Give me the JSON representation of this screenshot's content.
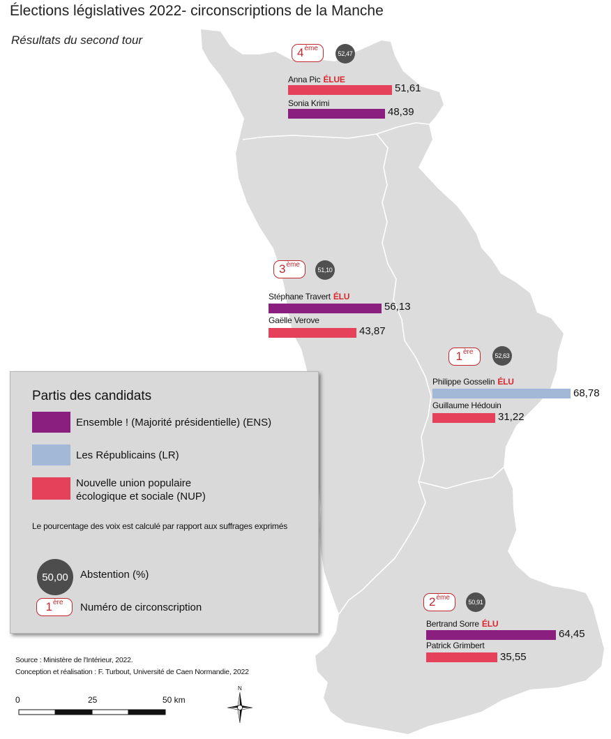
{
  "title": "Élections législatives 2022- circonscriptions de la Manche",
  "subtitle": "Résultats du second tour",
  "colors": {
    "ENS": "#8b1f7f",
    "LR": "#a3b8d6",
    "NUP": "#e6415a",
    "map_fill": "#dcdcdc",
    "map_border": "#ffffff",
    "circ_accent": "#c0272d",
    "abstention": "#505050"
  },
  "constituencies": [
    {
      "number": "4",
      "suffix": "ème",
      "abstention": "52,47",
      "candidates": [
        {
          "name": "Anna Pic",
          "elected_label": "ÉLUE",
          "party": "NUP",
          "pct": 51.61,
          "pct_label": "51,61"
        },
        {
          "name": "Sonia Krimi",
          "elected_label": "",
          "party": "ENS",
          "pct": 48.39,
          "pct_label": "48,39"
        }
      ]
    },
    {
      "number": "3",
      "suffix": "ème",
      "abstention": "51,10",
      "candidates": [
        {
          "name": "Stéphane Travert",
          "elected_label": "ÉLU",
          "party": "ENS",
          "pct": 56.13,
          "pct_label": "56,13"
        },
        {
          "name": "Gaëlle Verove",
          "elected_label": "",
          "party": "NUP",
          "pct": 43.87,
          "pct_label": "43,87"
        }
      ]
    },
    {
      "number": "1",
      "suffix": "ère",
      "abstention": "52,63",
      "candidates": [
        {
          "name": "Philippe Gosselin",
          "elected_label": "ÉLU",
          "party": "LR",
          "pct": 68.78,
          "pct_label": "68,78"
        },
        {
          "name": "Guillaume Hédouin",
          "elected_label": "",
          "party": "NUP",
          "pct": 31.22,
          "pct_label": "31,22"
        }
      ]
    },
    {
      "number": "2",
      "suffix": "ème",
      "abstention": "50,91",
      "candidates": [
        {
          "name": "Bertrand Sorre",
          "elected_label": "ÉLU",
          "party": "ENS",
          "pct": 64.45,
          "pct_label": "64,45"
        },
        {
          "name": "Patrick Grimbert",
          "elected_label": "",
          "party": "NUP",
          "pct": 35.55,
          "pct_label": "35,55"
        }
      ]
    }
  ],
  "legend": {
    "title": "Partis des candidats",
    "parties": [
      {
        "key": "ENS",
        "label": "Ensemble ! (Majorité présidentielle) (ENS)"
      },
      {
        "key": "LR",
        "label": "Les Républicains (LR)"
      },
      {
        "key": "NUP",
        "label": "Nouvelle union populaire écologique et sociale (NUP)"
      }
    ],
    "note": "Le pourcentage des voix est calculé par rapport aux suffrages exprimés",
    "abstention_sample": "50,00",
    "abstention_label": "Abstention (%)",
    "circ_sample_number": "1",
    "circ_sample_suffix": "ère",
    "circ_label": "Numéro de circonscription"
  },
  "source_line": "Source : Ministère de l'Intérieur, 2022.",
  "credit_line": "Conception et réalisation : F. Turbout, Université de Caen Normandie, 2022",
  "scale": {
    "labels": [
      "0",
      "25",
      "50 km"
    ]
  },
  "north_label": "N",
  "icons": {
    "north_arrow": "compass-rose-icon"
  }
}
